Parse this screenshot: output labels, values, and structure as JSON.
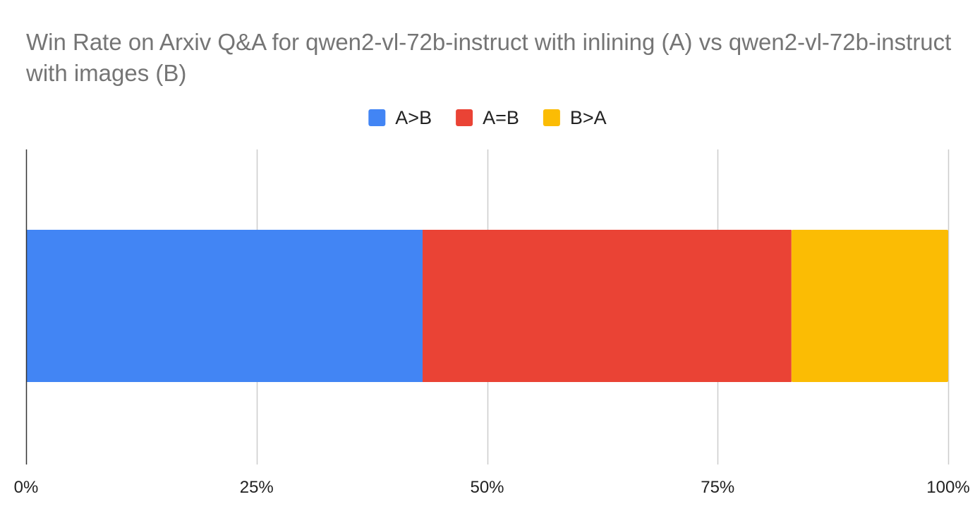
{
  "chart_data": {
    "type": "bar",
    "orientation": "horizontal",
    "stacked": true,
    "percent_stacked": true,
    "title": "Win Rate on Arxiv Q&A for qwen2-vl-72b-instruct with inlining (A) vs qwen2-vl-72b-instruct with images (B)",
    "xlabel": "",
    "ylabel": "",
    "categories": [
      ""
    ],
    "series": [
      {
        "name": "A>B",
        "color": "#4285F4",
        "values": [
          0.43
        ]
      },
      {
        "name": "A=B",
        "color": "#EA4335",
        "values": [
          0.4
        ]
      },
      {
        "name": "B>A",
        "color": "#FBBC04",
        "values": [
          0.17
        ]
      }
    ],
    "xlim": [
      0,
      1
    ],
    "x_ticks": [
      0,
      0.25,
      0.5,
      0.75,
      1
    ],
    "x_tick_labels": [
      "0%",
      "25%",
      "50%",
      "75%",
      "100%"
    ],
    "grid": true,
    "legend_position": "top"
  }
}
